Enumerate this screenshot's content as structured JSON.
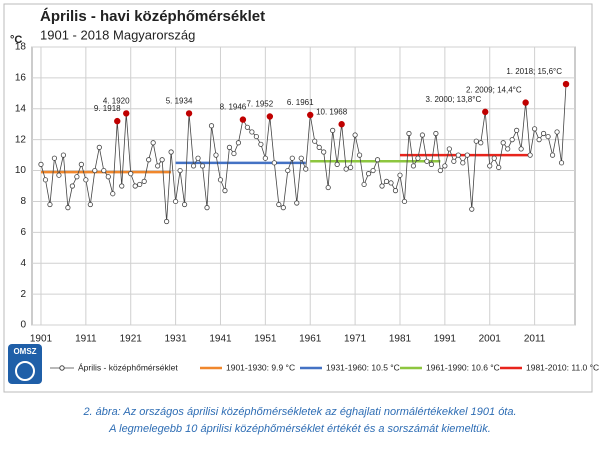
{
  "chart_data": {
    "type": "line",
    "title": "Április - havi középhőmérséklet",
    "subtitle": "1901 - 2018  Magyarország",
    "y_label": "°C",
    "logo": "OMSZ",
    "caption": [
      "2. ábra: Az országos áprilisi középhőmérsékletek az éghajlati normálértékekkel 1901 óta.",
      "A legmelegebb 10 áprilisi középhőmérséklet értékét és a sorszámát kiemeltük."
    ],
    "x": [
      1901,
      1902,
      1903,
      1904,
      1905,
      1906,
      1907,
      1908,
      1909,
      1910,
      1911,
      1912,
      1913,
      1914,
      1915,
      1916,
      1917,
      1918,
      1919,
      1920,
      1921,
      1922,
      1923,
      1924,
      1925,
      1926,
      1927,
      1928,
      1929,
      1930,
      1931,
      1932,
      1933,
      1934,
      1935,
      1936,
      1937,
      1938,
      1939,
      1940,
      1941,
      1942,
      1943,
      1944,
      1945,
      1946,
      1947,
      1948,
      1949,
      1950,
      1951,
      1952,
      1953,
      1954,
      1955,
      1956,
      1957,
      1958,
      1959,
      1960,
      1961,
      1962,
      1963,
      1964,
      1965,
      1966,
      1967,
      1968,
      1969,
      1970,
      1971,
      1972,
      1973,
      1974,
      1975,
      1976,
      1977,
      1978,
      1979,
      1980,
      1981,
      1982,
      1983,
      1984,
      1985,
      1986,
      1987,
      1988,
      1989,
      1990,
      1991,
      1992,
      1993,
      1994,
      1995,
      1996,
      1997,
      1998,
      1999,
      2000,
      2001,
      2002,
      2003,
      2004,
      2005,
      2006,
      2007,
      2008,
      2009,
      2010,
      2011,
      2012,
      2013,
      2014,
      2015,
      2016,
      2017,
      2018
    ],
    "series": [
      {
        "name": "Április - középhőmérséklet",
        "color": "#444444",
        "highlight_color": "#c00000",
        "values": [
          10.4,
          9.4,
          7.8,
          10.8,
          9.7,
          11.0,
          7.6,
          9.0,
          9.6,
          10.4,
          9.4,
          7.8,
          10.0,
          11.5,
          10.0,
          9.6,
          8.5,
          13.2,
          9.0,
          13.7,
          9.8,
          9.0,
          9.1,
          9.3,
          10.7,
          11.8,
          10.3,
          10.7,
          6.7,
          11.2,
          8.0,
          10.0,
          7.8,
          13.7,
          10.3,
          10.8,
          10.3,
          7.6,
          12.9,
          11.0,
          9.4,
          8.7,
          11.5,
          11.1,
          11.8,
          13.3,
          12.8,
          12.5,
          12.2,
          11.7,
          10.8,
          13.5,
          10.5,
          7.8,
          7.6,
          10.0,
          10.8,
          7.9,
          10.8,
          10.1,
          13.6,
          11.9,
          11.5,
          11.2,
          8.9,
          12.6,
          10.4,
          13.0,
          10.1,
          10.2,
          12.3,
          11.0,
          9.1,
          9.8,
          10.0,
          10.7,
          9.0,
          9.3,
          9.2,
          8.7,
          9.7,
          8.0,
          12.4,
          10.3,
          10.8,
          12.3,
          10.6,
          10.4,
          12.4,
          10.0,
          10.3,
          11.4,
          10.6,
          11.0,
          10.5,
          11.0,
          7.5,
          11.9,
          11.8,
          13.8,
          10.3,
          10.8,
          10.2,
          11.8,
          11.4,
          12.0,
          12.6,
          11.4,
          14.4,
          11.0,
          12.7,
          12.0,
          12.4,
          12.2,
          11.0,
          12.5,
          10.5,
          15.6
        ]
      }
    ],
    "normals": [
      {
        "name": "1901-1930: 9.9 °C",
        "x": [
          1901,
          1930
        ],
        "value": 9.9,
        "color": "#f0872c"
      },
      {
        "name": "1931-1960: 10.5 °C",
        "x": [
          1931,
          1960
        ],
        "value": 10.5,
        "color": "#4472c4"
      },
      {
        "name": "1961-1990: 10.6 °C",
        "x": [
          1961,
          1990
        ],
        "value": 10.6,
        "color": "#8dc63f"
      },
      {
        "name": "1981-2010: 11.0 °C",
        "x": [
          1981,
          2010
        ],
        "value": 11.0,
        "color": "#e8241c"
      }
    ],
    "annotations": [
      {
        "text": "9. 1918",
        "x": 1918
      },
      {
        "text": "4. 1920",
        "x": 1920
      },
      {
        "text": "5. 1934",
        "x": 1934
      },
      {
        "text": "8. 1946",
        "x": 1946
      },
      {
        "text": "7. 1952",
        "x": 1952
      },
      {
        "text": "6. 1961",
        "x": 1961
      },
      {
        "text": "10. 1968",
        "x": 1968
      },
      {
        "text": "3. 2000; 13,8°C",
        "x": 2000
      },
      {
        "text": "2. 2009; 14,4°C",
        "x": 2009
      },
      {
        "text": "1. 2018; 15,6°C",
        "x": 2018
      }
    ],
    "xlim": [
      1899,
      2020
    ],
    "xticks": [
      1901,
      1911,
      1921,
      1931,
      1941,
      1951,
      1961,
      1971,
      1981,
      1991,
      2001,
      2011
    ],
    "ylim": [
      0,
      18
    ],
    "yticks": [
      0,
      2,
      4,
      6,
      8,
      10,
      12,
      14,
      16,
      18
    ],
    "grid": true
  }
}
